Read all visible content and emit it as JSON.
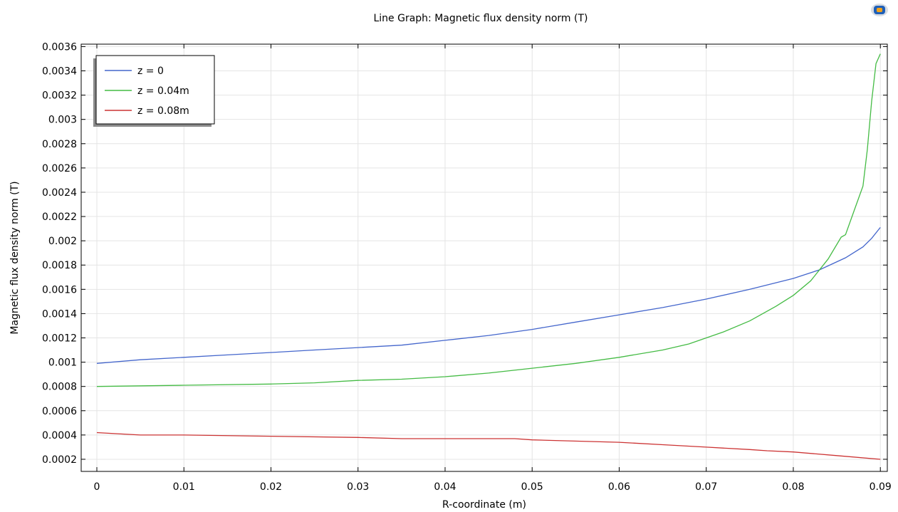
{
  "chart_data": {
    "type": "line",
    "title": "Line Graph: Magnetic flux density norm (T)",
    "xlabel": "R-coordinate (m)",
    "ylabel": "Magnetic flux density norm (T)",
    "xlim": [
      -0.0018,
      0.0908
    ],
    "ylim": [
      0.0001,
      0.00362
    ],
    "grid": true,
    "legend_position": "top-left",
    "x_ticks": [
      "0",
      "0.01",
      "0.02",
      "0.03",
      "0.04",
      "0.05",
      "0.06",
      "0.07",
      "0.08",
      "0.09"
    ],
    "x_tick_values": [
      0,
      0.01,
      0.02,
      0.03,
      0.04,
      0.05,
      0.06,
      0.07,
      0.08,
      0.09
    ],
    "y_ticks": [
      "0.0002",
      "0.0004",
      "0.0006",
      "0.0008",
      "0.001",
      "0.0012",
      "0.0014",
      "0.0016",
      "0.0018",
      "0.002",
      "0.0022",
      "0.0024",
      "0.0026",
      "0.0028",
      "0.003",
      "0.0032",
      "0.0034",
      "0.0036"
    ],
    "y_tick_values": [
      0.0002,
      0.0004,
      0.0006,
      0.0008,
      0.001,
      0.0012,
      0.0014,
      0.0016,
      0.0018,
      0.002,
      0.0022,
      0.0024,
      0.0026,
      0.0028,
      0.003,
      0.0032,
      0.0034,
      0.0036
    ],
    "series": [
      {
        "name": "z = 0",
        "color": "#4466cc",
        "x": [
          0,
          0.005,
          0.01,
          0.015,
          0.02,
          0.025,
          0.03,
          0.035,
          0.04,
          0.045,
          0.05,
          0.055,
          0.06,
          0.065,
          0.07,
          0.075,
          0.08,
          0.083,
          0.086,
          0.088,
          0.089,
          0.09
        ],
        "y": [
          0.00099,
          0.00102,
          0.00104,
          0.00106,
          0.00108,
          0.0011,
          0.00112,
          0.00114,
          0.00118,
          0.00122,
          0.00127,
          0.00133,
          0.00139,
          0.00145,
          0.00152,
          0.0016,
          0.00169,
          0.00176,
          0.00186,
          0.00195,
          0.00202,
          0.00211
        ]
      },
      {
        "name": "z = 0.04m",
        "color": "#44bb44",
        "x": [
          0,
          0.01,
          0.02,
          0.025,
          0.03,
          0.035,
          0.04,
          0.045,
          0.05,
          0.055,
          0.06,
          0.065,
          0.068,
          0.072,
          0.075,
          0.078,
          0.08,
          0.082,
          0.084,
          0.0855,
          0.086,
          0.087,
          0.088,
          0.0885,
          0.089,
          0.0895,
          0.09
        ],
        "y": [
          0.0008,
          0.00081,
          0.00082,
          0.00083,
          0.00085,
          0.00086,
          0.00088,
          0.00091,
          0.00095,
          0.00099,
          0.00104,
          0.0011,
          0.00115,
          0.00125,
          0.00134,
          0.00146,
          0.00155,
          0.00167,
          0.00185,
          0.00203,
          0.00205,
          0.00225,
          0.00245,
          0.00275,
          0.00315,
          0.00346,
          0.00354
        ]
      },
      {
        "name": "z = 0.08m",
        "color": "#cc3333",
        "x": [
          0,
          0.005,
          0.01,
          0.02,
          0.03,
          0.035,
          0.04,
          0.048,
          0.05,
          0.06,
          0.065,
          0.07,
          0.075,
          0.077,
          0.08,
          0.085,
          0.09
        ],
        "y": [
          0.00042,
          0.0004,
          0.0004,
          0.00039,
          0.00038,
          0.00037,
          0.00037,
          0.00037,
          0.00036,
          0.00034,
          0.00032,
          0.0003,
          0.00028,
          0.00027,
          0.00026,
          0.00023,
          0.0002
        ]
      }
    ]
  }
}
